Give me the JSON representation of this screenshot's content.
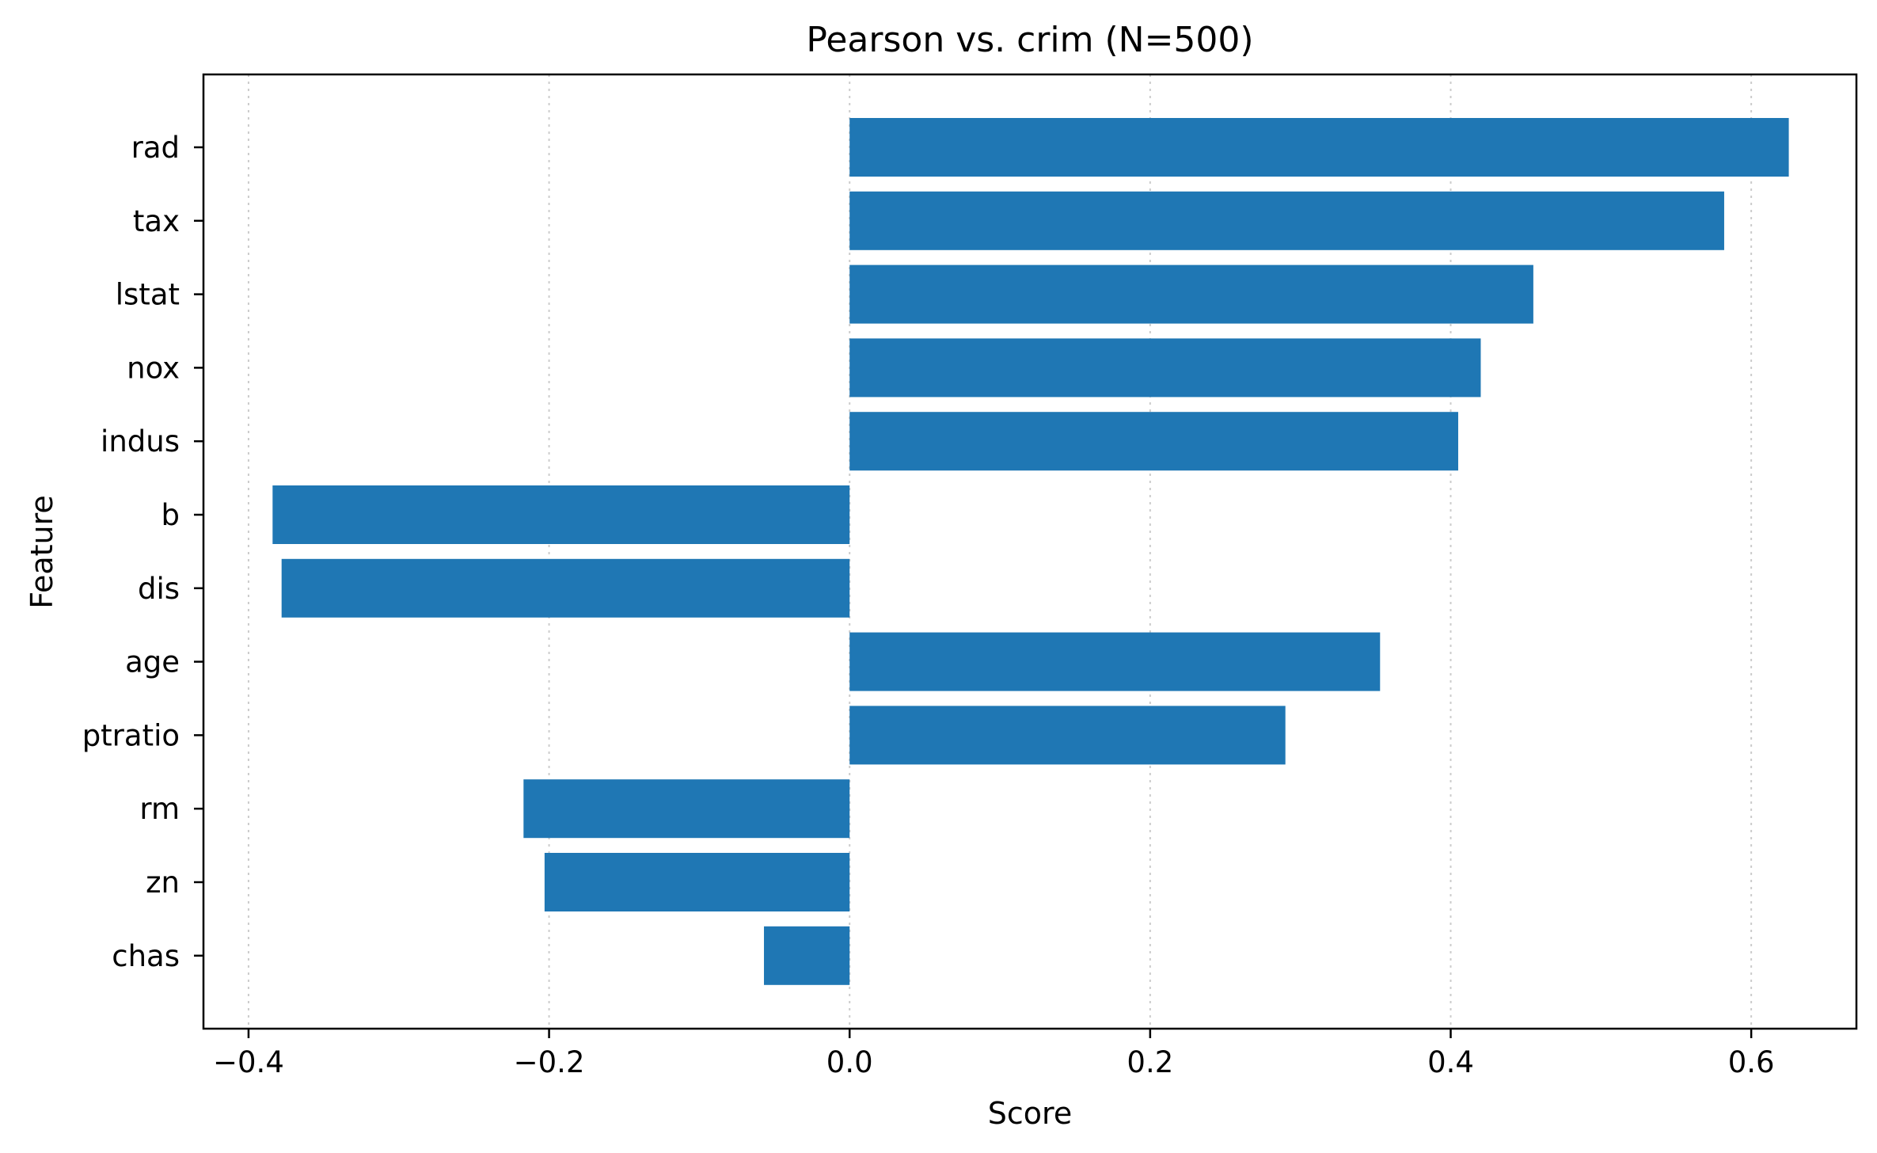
{
  "chart_data": {
    "type": "bar",
    "orientation": "horizontal",
    "title": "Pearson vs. crim  (N=500)",
    "xlabel": "Score",
    "ylabel": "Feature",
    "xlim": [
      -0.43,
      0.67
    ],
    "xticks": [
      -0.4,
      -0.2,
      0.0,
      0.2,
      0.4,
      0.6
    ],
    "xtick_labels": [
      "−0.4",
      "−0.2",
      "0.0",
      "0.2",
      "0.4",
      "0.6"
    ],
    "grid": "x-dotted",
    "bar_color": "#1f77b4",
    "categories": [
      "rad",
      "tax",
      "lstat",
      "nox",
      "indus",
      "b",
      "dis",
      "age",
      "ptratio",
      "rm",
      "zn",
      "chas"
    ],
    "values": [
      0.625,
      0.582,
      0.455,
      0.42,
      0.405,
      -0.384,
      -0.378,
      0.353,
      0.29,
      -0.217,
      -0.203,
      -0.057
    ]
  }
}
